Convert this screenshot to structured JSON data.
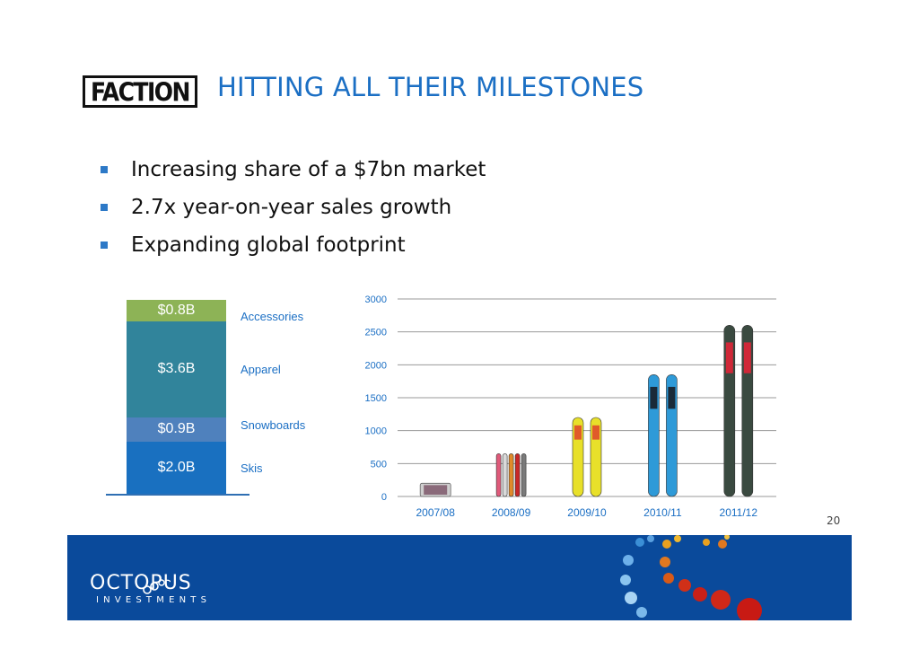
{
  "logo": {
    "text": "FACTION"
  },
  "title": "HITTING ALL THEIR MILESTONES",
  "bullets": [
    "Increasing share of a $7bn market",
    "2.7x year-on-year sales growth",
    "Expanding global footprint"
  ],
  "market_stack": [
    {
      "value": "$0.8B",
      "label": "Accessories",
      "amount": 0.8,
      "color": "#8db356"
    },
    {
      "value": "$3.6B",
      "label": "Apparel",
      "amount": 3.6,
      "color": "#31849b"
    },
    {
      "value": "$0.9B",
      "label": "Snowboards",
      "amount": 0.9,
      "color": "#4f81bd"
    },
    {
      "value": "$2.0B",
      "label": "Skis",
      "amount": 2.0,
      "color": "#1970c0"
    }
  ],
  "chart_data": {
    "type": "bar",
    "categories": [
      "2007/08",
      "2008/09",
      "2009/10",
      "2010/11",
      "2011/12"
    ],
    "values": [
      200,
      650,
      1200,
      1850,
      2600
    ],
    "ylim": [
      0,
      3000
    ],
    "yticks": [
      "0",
      "500",
      "1000",
      "1500",
      "2000",
      "2500",
      "3000"
    ],
    "title": "",
    "xlabel": "",
    "ylabel": "",
    "grid": true
  },
  "page_number": "20",
  "footer": {
    "brand_name": "OCTOPUS",
    "brand_sub": "INVESTMENTS"
  }
}
